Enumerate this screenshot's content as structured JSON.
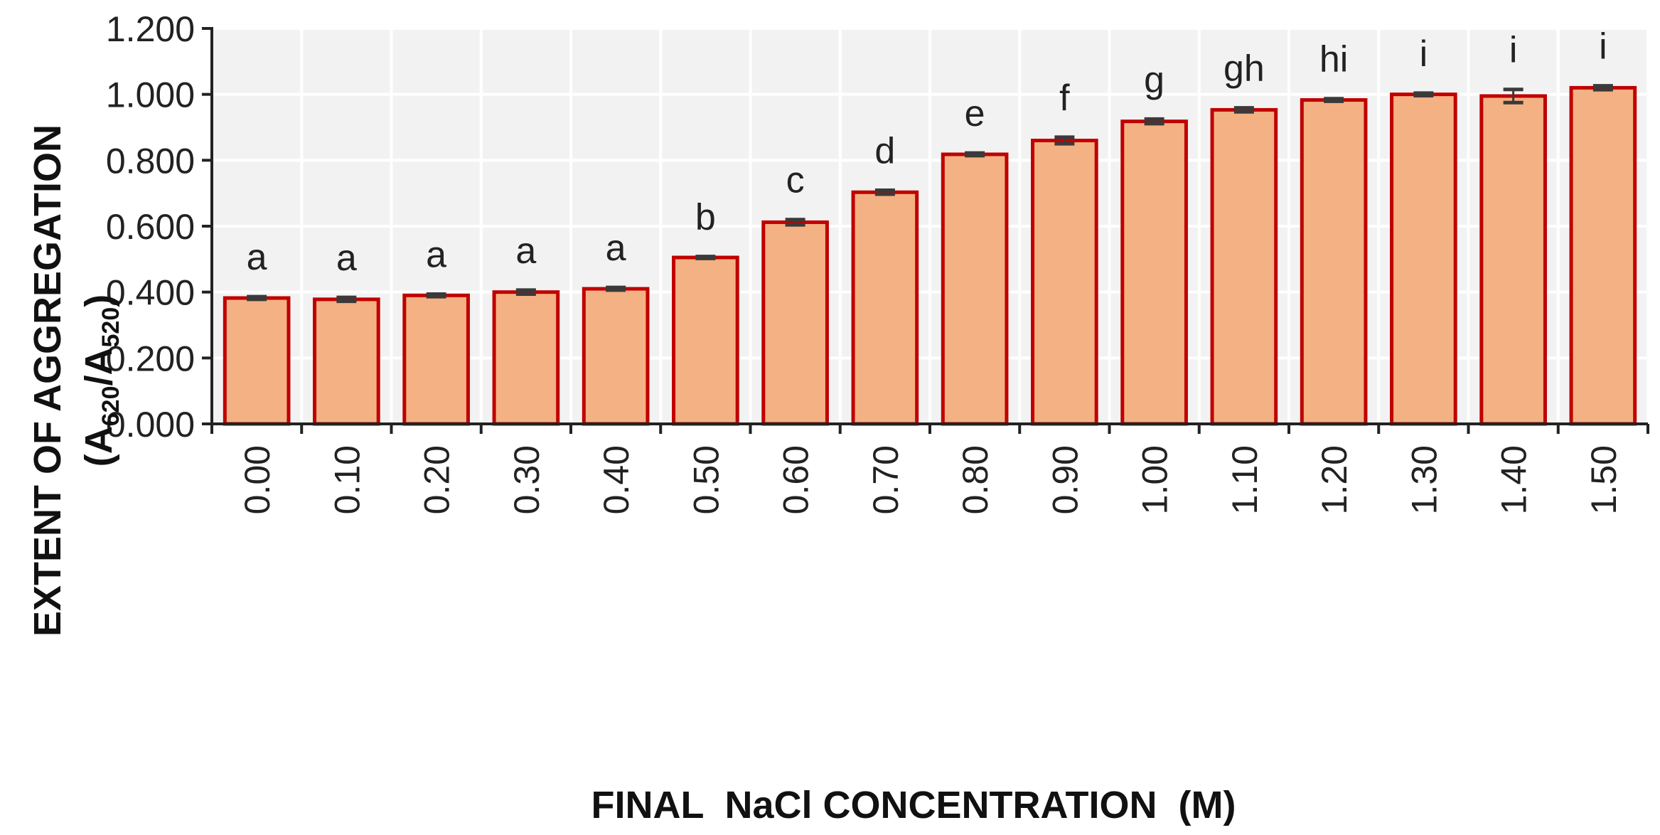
{
  "chart_data": {
    "type": "bar",
    "categories": [
      "0.00",
      "0.10",
      "0.20",
      "0.30",
      "0.40",
      "0.50",
      "0.60",
      "0.70",
      "0.80",
      "0.90",
      "1.00",
      "1.10",
      "1.20",
      "1.30",
      "1.40",
      "1.50"
    ],
    "values": [
      0.382,
      0.378,
      0.39,
      0.4,
      0.41,
      0.505,
      0.612,
      0.703,
      0.818,
      0.86,
      0.918,
      0.953,
      0.983,
      1.0,
      0.995,
      1.02
    ],
    "errors": [
      0.004,
      0.006,
      0.004,
      0.006,
      0.004,
      0.003,
      0.008,
      0.006,
      0.004,
      0.01,
      0.007,
      0.006,
      0.004,
      0.004,
      0.02,
      0.006
    ],
    "significance": [
      "a",
      "a",
      "a",
      "a",
      "a",
      "b",
      "c",
      "d",
      "e",
      "f",
      "g",
      "gh",
      "hi",
      "i",
      "i",
      "i"
    ],
    "xlabel": "FINAL  NaCl CONCENTRATION  (M)",
    "ylabel": {
      "line1": "EXTENT OF AGGREGATION",
      "open": "(A",
      "sub1": "620",
      "slash": "/A",
      "sub2": "520",
      "close": ")"
    },
    "ylim": [
      0,
      1.2
    ],
    "yticks": [
      "0.000",
      "0.200",
      "0.400",
      "0.600",
      "0.800",
      "1.000",
      "1.200"
    ],
    "grid": true,
    "colors": {
      "bar_fill": "#f4b183",
      "bar_stroke": "#c00000",
      "error_bar": "#3a3a3a",
      "plot_bg": "#f2f2f2",
      "grid": "#ffffff",
      "axis": "#222222"
    }
  }
}
